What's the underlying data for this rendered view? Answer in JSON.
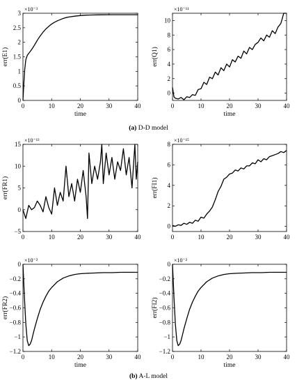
{
  "captions": [
    {
      "tag": "(a)",
      "text": "D-D model"
    },
    {
      "tag": "(b)",
      "text": "A-L model"
    }
  ],
  "chart_data": [
    {
      "type": "line",
      "ylabel": "err(E1)",
      "xlabel": "time",
      "exponent_label": "×10⁻³",
      "xlim": [
        0,
        40
      ],
      "ylim": [
        0,
        3
      ],
      "xticks": [
        0,
        10,
        20,
        30,
        40
      ],
      "yticks": [
        0,
        0.5,
        1,
        1.5,
        2,
        2.5,
        3
      ],
      "series": [
        {
          "x": [
            0,
            0.3,
            0.6,
            1,
            1.5,
            2,
            2.5,
            3,
            4,
            5,
            6,
            7,
            8,
            9,
            10,
            11,
            12,
            13,
            14,
            15,
            16,
            18,
            20,
            22,
            24,
            26,
            28,
            30,
            33,
            36,
            40
          ],
          "y": [
            0,
            0.55,
            1.05,
            1.4,
            1.55,
            1.62,
            1.68,
            1.75,
            1.9,
            2.07,
            2.22,
            2.35,
            2.46,
            2.55,
            2.63,
            2.69,
            2.74,
            2.78,
            2.82,
            2.85,
            2.87,
            2.9,
            2.92,
            2.935,
            2.94,
            2.945,
            2.948,
            2.95,
            2.95,
            2.95,
            2.95
          ]
        }
      ]
    },
    {
      "type": "line",
      "ylabel": "err(Q1)",
      "xlabel": "time",
      "exponent_label": "×10⁻¹¹",
      "xlim": [
        0,
        40
      ],
      "ylim": [
        -1,
        11
      ],
      "xticks": [
        0,
        10,
        20,
        30,
        40
      ],
      "yticks": [
        0,
        2,
        4,
        6,
        8,
        10
      ],
      "series": [
        {
          "x": [
            0,
            0.5,
            1,
            2,
            3,
            4,
            5,
            6,
            7,
            8,
            9,
            10,
            11,
            12,
            13,
            14,
            15,
            16,
            17,
            18,
            19,
            20,
            21,
            22,
            23,
            24,
            25,
            26,
            27,
            28,
            29,
            30,
            31,
            32,
            33,
            34,
            35,
            36,
            37,
            38,
            38.5,
            39,
            40
          ],
          "y": [
            0.8,
            -0.5,
            -0.7,
            -0.8,
            -0.6,
            -0.9,
            -0.5,
            -0.6,
            -0.2,
            -0.3,
            0.5,
            0.6,
            1.5,
            1.2,
            2.2,
            2.0,
            2.9,
            2.5,
            3.5,
            3.1,
            4.0,
            3.6,
            4.6,
            4.3,
            5.1,
            4.8,
            5.8,
            5.4,
            6.3,
            6.0,
            6.7,
            7.0,
            7.6,
            7.2,
            8.0,
            7.7,
            8.6,
            8.2,
            9.1,
            9.6,
            10.3,
            11.0,
            11.0
          ]
        }
      ]
    },
    {
      "type": "line",
      "ylabel": "err(FR1)",
      "xlabel": "",
      "exponent_label": "×10⁻¹³",
      "xlim": [
        0,
        40
      ],
      "ylim": [
        -5,
        15
      ],
      "xticks": [
        0,
        10,
        20,
        30,
        40
      ],
      "yticks": [
        -5,
        0,
        5,
        10,
        15
      ],
      "series": [
        {
          "x": [
            0,
            1,
            2,
            3,
            4,
            5,
            6,
            7,
            8,
            9,
            10,
            11,
            12,
            13,
            14,
            15,
            16,
            17,
            18,
            19,
            20,
            21,
            22,
            22.5,
            23,
            24,
            25,
            26,
            27,
            27.5,
            28,
            29,
            30,
            31,
            32,
            33,
            34,
            35,
            36,
            37,
            38,
            39,
            39.5,
            40
          ],
          "y": [
            0,
            -2,
            1,
            0,
            0.5,
            2,
            1,
            -0.5,
            3,
            0.5,
            -1,
            5,
            1,
            4,
            2,
            10,
            3,
            6,
            2,
            7,
            4,
            9,
            3,
            -2,
            13,
            6,
            10,
            7,
            11,
            15,
            6,
            13,
            8,
            12,
            7,
            11,
            9,
            14,
            8,
            12,
            5,
            15,
            7,
            11
          ]
        }
      ]
    },
    {
      "type": "line",
      "ylabel": "err(FI1)",
      "xlabel": "",
      "exponent_label": "×10⁻¹⁵",
      "xlim": [
        0,
        40
      ],
      "ylim": [
        -0.5,
        8
      ],
      "xticks": [
        0,
        10,
        20,
        30,
        40
      ],
      "yticks": [
        0,
        2,
        4,
        6,
        8
      ],
      "series": [
        {
          "x": [
            0,
            1,
            2,
            3,
            4,
            5,
            6,
            7,
            8,
            9,
            10,
            11,
            12,
            13,
            14,
            15,
            16,
            17,
            18,
            19,
            20,
            21,
            22,
            23,
            24,
            25,
            26,
            27,
            28,
            29,
            30,
            31,
            32,
            33,
            34,
            35,
            36,
            37,
            38,
            39,
            40
          ],
          "y": [
            0.1,
            0.0,
            0.15,
            0.1,
            0.3,
            0.2,
            0.4,
            0.3,
            0.6,
            0.5,
            0.9,
            0.8,
            1.2,
            1.5,
            1.9,
            2.6,
            3.4,
            3.9,
            4.6,
            4.8,
            5.1,
            5.2,
            5.5,
            5.4,
            5.7,
            5.6,
            5.9,
            5.9,
            6.2,
            6.1,
            6.5,
            6.3,
            6.6,
            6.5,
            6.8,
            6.9,
            7.0,
            7.1,
            7.3,
            7.2,
            7.4
          ]
        }
      ]
    },
    {
      "type": "line",
      "ylabel": "err(FR2)",
      "xlabel": "time",
      "exponent_label": "×10⁻²",
      "xlim": [
        0,
        40
      ],
      "ylim": [
        -1.2,
        0
      ],
      "xticks": [
        0,
        10,
        20,
        30,
        40
      ],
      "yticks": [
        -1.2,
        -1,
        -0.8,
        -0.6,
        -0.4,
        -0.2,
        0
      ],
      "series": [
        {
          "x": [
            0,
            0.5,
            1,
            1.5,
            2,
            2.5,
            3,
            3.5,
            4,
            5,
            6,
            7,
            8,
            9,
            10,
            12,
            14,
            16,
            18,
            20,
            22,
            25,
            28,
            31,
            34,
            37,
            40
          ],
          "y": [
            0,
            -0.45,
            -0.82,
            -1.05,
            -1.12,
            -1.1,
            -1.05,
            -0.97,
            -0.89,
            -0.75,
            -0.62,
            -0.52,
            -0.44,
            -0.37,
            -0.32,
            -0.24,
            -0.19,
            -0.16,
            -0.14,
            -0.13,
            -0.125,
            -0.12,
            -0.115,
            -0.115,
            -0.11,
            -0.11,
            -0.11
          ]
        }
      ]
    },
    {
      "type": "line",
      "ylabel": "err(FI2)",
      "xlabel": "time",
      "exponent_label": "×10⁻²",
      "xlim": [
        0,
        40
      ],
      "ylim": [
        -1.2,
        0
      ],
      "xticks": [
        0,
        10,
        20,
        30,
        40
      ],
      "yticks": [
        -1.2,
        -1,
        -0.8,
        -0.6,
        -0.4,
        -0.2,
        0
      ],
      "series": [
        {
          "x": [
            0,
            0.5,
            1,
            1.5,
            2,
            2.5,
            3,
            3.5,
            4,
            5,
            6,
            7,
            8,
            9,
            10,
            12,
            14,
            16,
            18,
            20,
            22,
            25,
            28,
            31,
            34,
            37,
            40
          ],
          "y": [
            0,
            -0.45,
            -0.82,
            -1.05,
            -1.12,
            -1.1,
            -1.05,
            -0.97,
            -0.89,
            -0.75,
            -0.62,
            -0.52,
            -0.44,
            -0.37,
            -0.32,
            -0.24,
            -0.19,
            -0.16,
            -0.14,
            -0.13,
            -0.125,
            -0.12,
            -0.115,
            -0.115,
            -0.11,
            -0.11,
            -0.11
          ]
        }
      ]
    }
  ]
}
